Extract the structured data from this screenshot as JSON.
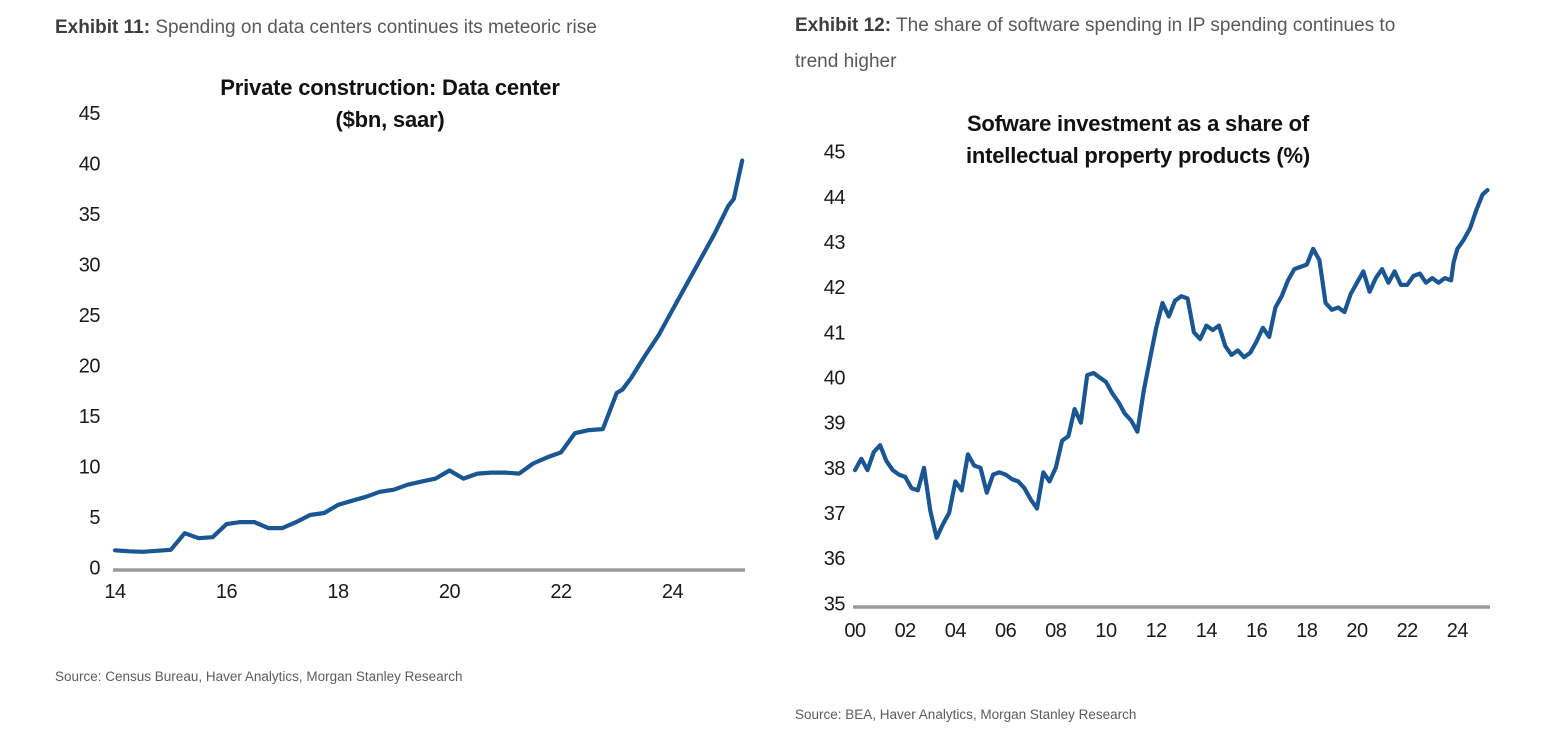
{
  "exhibits": [
    {
      "label": "Exhibit 11:",
      "heading": "Spending on data centers continues its meteoric rise",
      "source": "Source: Census Bureau, Haver Analytics, Morgan Stanley Research"
    },
    {
      "label": "Exhibit 12:",
      "heading": "The share of software spending in IP spending continues to trend higher",
      "source": "Source: BEA, Haver Analytics, Morgan Stanley Research"
    }
  ],
  "chart_data": [
    {
      "type": "line",
      "title": "Private construction: Data center ($bn, saar)",
      "title_lines": [
        "Private construction: Data center",
        "($bn, saar)"
      ],
      "xlabel": "",
      "ylabel": "",
      "ylim": [
        0,
        45
      ],
      "xlim": [
        2014,
        2025.4
      ],
      "grid": false,
      "legend": null,
      "line_color": "#1a5692",
      "axis_color": "#9a9a9a",
      "y_ticks": {
        "values": [
          0,
          5,
          10,
          15,
          20,
          25,
          30,
          35,
          40,
          45
        ],
        "labels": [
          "0",
          "5",
          "10",
          "15",
          "20",
          "25",
          "30",
          "35",
          "40",
          "45"
        ]
      },
      "x_ticks": {
        "values": [
          2014,
          2016,
          2018,
          2020,
          2022,
          2024
        ],
        "labels": [
          "14",
          "16",
          "18",
          "20",
          "22",
          "24"
        ]
      },
      "x": [
        2014.0,
        2014.25,
        2014.5,
        2014.75,
        2015.0,
        2015.25,
        2015.5,
        2015.75,
        2016.0,
        2016.25,
        2016.5,
        2016.75,
        2017.0,
        2017.25,
        2017.5,
        2017.75,
        2018.0,
        2018.25,
        2018.5,
        2018.75,
        2019.0,
        2019.25,
        2019.5,
        2019.75,
        2020.0,
        2020.25,
        2020.5,
        2020.75,
        2021.0,
        2021.25,
        2021.5,
        2021.75,
        2022.0,
        2022.25,
        2022.5,
        2022.75,
        2023.0,
        2023.1,
        2023.25,
        2023.5,
        2023.75,
        2024.0,
        2024.25,
        2024.5,
        2024.75,
        2025.0,
        2025.1,
        2025.25
      ],
      "values": [
        1.7,
        1.6,
        1.55,
        1.65,
        1.75,
        3.4,
        2.9,
        3.0,
        4.3,
        4.5,
        4.5,
        3.9,
        3.9,
        4.5,
        5.2,
        5.4,
        6.2,
        6.6,
        7.0,
        7.5,
        7.7,
        8.2,
        8.5,
        8.8,
        9.6,
        8.8,
        9.3,
        9.4,
        9.4,
        9.3,
        10.3,
        10.9,
        11.4,
        13.3,
        13.6,
        13.7,
        17.3,
        17.6,
        18.7,
        20.9,
        23.0,
        25.5,
        28.0,
        30.5,
        33.0,
        35.8,
        36.5,
        40.3
      ]
    },
    {
      "type": "line",
      "title": "Sofware investment as a share of intellectual property products (%)",
      "title_lines": [
        "Sofware investment as a share of",
        "intellectual property products (%)"
      ],
      "xlabel": "",
      "ylabel": "",
      "ylim": [
        35,
        45
      ],
      "xlim": [
        2000,
        2025.4
      ],
      "grid": false,
      "legend": null,
      "line_color": "#1a5692",
      "axis_color": "#9a9a9a",
      "y_ticks": {
        "values": [
          35,
          36,
          37,
          38,
          39,
          40,
          41,
          42,
          43,
          44,
          45
        ],
        "labels": [
          "35",
          "36",
          "37",
          "38",
          "39",
          "40",
          "41",
          "42",
          "43",
          "44",
          "45"
        ]
      },
      "x_ticks": {
        "values": [
          2000,
          2002,
          2004,
          2006,
          2008,
          2010,
          2012,
          2014,
          2016,
          2018,
          2020,
          2022,
          2024
        ],
        "labels": [
          "00",
          "02",
          "04",
          "06",
          "08",
          "10",
          "12",
          "14",
          "16",
          "18",
          "20",
          "22",
          "24"
        ]
      },
      "x": [
        2000.0,
        2000.25,
        2000.5,
        2000.75,
        2001.0,
        2001.25,
        2001.5,
        2001.75,
        2002.0,
        2002.25,
        2002.5,
        2002.75,
        2003.0,
        2003.25,
        2003.5,
        2003.75,
        2004.0,
        2004.25,
        2004.5,
        2004.75,
        2005.0,
        2005.25,
        2005.5,
        2005.75,
        2006.0,
        2006.25,
        2006.5,
        2006.75,
        2007.0,
        2007.25,
        2007.5,
        2007.75,
        2008.0,
        2008.25,
        2008.5,
        2008.75,
        2009.0,
        2009.25,
        2009.5,
        2009.75,
        2010.0,
        2010.25,
        2010.5,
        2010.75,
        2011.0,
        2011.25,
        2011.5,
        2011.75,
        2012.0,
        2012.25,
        2012.5,
        2012.75,
        2013.0,
        2013.25,
        2013.5,
        2013.75,
        2014.0,
        2014.25,
        2014.5,
        2014.75,
        2015.0,
        2015.25,
        2015.5,
        2015.75,
        2016.0,
        2016.25,
        2016.5,
        2016.75,
        2017.0,
        2017.25,
        2017.5,
        2017.75,
        2018.0,
        2018.25,
        2018.5,
        2018.75,
        2019.0,
        2019.25,
        2019.5,
        2019.75,
        2020.0,
        2020.25,
        2020.5,
        2020.75,
        2021.0,
        2021.25,
        2021.5,
        2021.75,
        2022.0,
        2022.25,
        2022.5,
        2022.75,
        2023.0,
        2023.25,
        2023.5,
        2023.75,
        2023.85,
        2024.0,
        2024.25,
        2024.5,
        2024.75,
        2025.0,
        2025.2
      ],
      "values": [
        37.95,
        38.2,
        37.95,
        38.35,
        38.5,
        38.15,
        37.95,
        37.85,
        37.8,
        37.55,
        37.5,
        38.0,
        37.05,
        36.45,
        36.75,
        37.0,
        37.7,
        37.5,
        38.3,
        38.05,
        38.0,
        37.45,
        37.85,
        37.9,
        37.85,
        37.75,
        37.7,
        37.55,
        37.3,
        37.1,
        37.9,
        37.7,
        38.0,
        38.6,
        38.7,
        39.3,
        39.0,
        40.05,
        40.1,
        40.0,
        39.9,
        39.65,
        39.45,
        39.2,
        39.05,
        38.8,
        39.7,
        40.4,
        41.1,
        41.65,
        41.35,
        41.7,
        41.8,
        41.75,
        41.0,
        40.85,
        41.15,
        41.05,
        41.15,
        40.7,
        40.5,
        40.6,
        40.45,
        40.55,
        40.8,
        41.1,
        40.9,
        41.55,
        41.8,
        42.15,
        42.4,
        42.45,
        42.5,
        42.85,
        42.6,
        41.65,
        41.5,
        41.55,
        41.45,
        41.85,
        42.1,
        42.35,
        41.9,
        42.2,
        42.4,
        42.1,
        42.35,
        42.05,
        42.05,
        42.25,
        42.3,
        42.1,
        42.2,
        42.1,
        42.2,
        42.15,
        42.55,
        42.85,
        43.05,
        43.3,
        43.7,
        44.05,
        44.15
      ]
    }
  ]
}
